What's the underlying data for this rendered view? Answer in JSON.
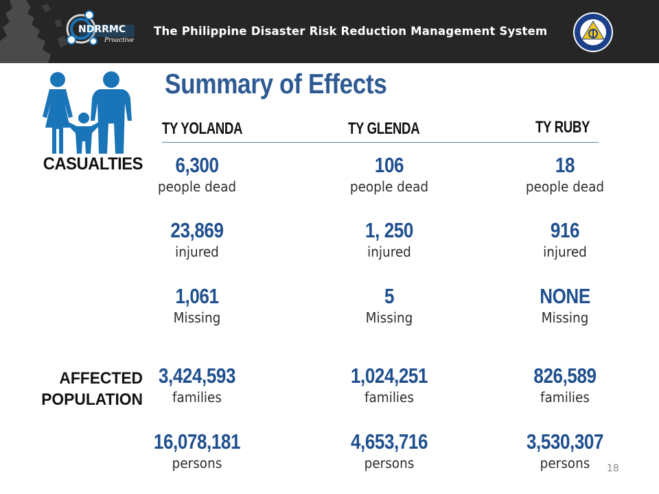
{
  "header": {
    "logo_acronym": "NDRRMC",
    "logo_tagline": "Proactive",
    "title": "The Philippine Disaster Risk Reduction Management System",
    "seal_icon": "civil-defense-seal-icon"
  },
  "slide": {
    "title": "Summary of Effects",
    "page_number": "18"
  },
  "icons": {
    "family": "family-icon"
  },
  "row_labels": {
    "casualties": "CASUALTIES",
    "affected_line1": "AFFECTED",
    "affected_line2": "POPULATION"
  },
  "typhoons": [
    {
      "name": "TY YOLANDA",
      "dead": "6,300",
      "dead_unit": "people dead",
      "injured": "23,869",
      "injured_unit": "injured",
      "missing": "1,061",
      "missing_unit": "Missing",
      "families": "3,424,593",
      "families_unit": "families",
      "persons": "16,078,181",
      "persons_unit": "persons"
    },
    {
      "name": "TY GLENDA",
      "dead": "106",
      "dead_unit": "people dead",
      "injured": "1, 250",
      "injured_unit": "injured",
      "missing": "5",
      "missing_unit": "Missing",
      "families": "1,024,251",
      "families_unit": "families",
      "persons": "4,653,716",
      "persons_unit": "persons"
    },
    {
      "name": "TY RUBY",
      "dead": "18",
      "dead_unit": "people dead",
      "injured": "916",
      "injured_unit": "injured",
      "missing": "NONE",
      "missing_unit": "Missing",
      "families": "826,589",
      "families_unit": "families",
      "persons": "3,530,307",
      "persons_unit": "persons"
    }
  ],
  "colors": {
    "banner": "#262626",
    "title_blue": "#2e5a93",
    "number_blue": "#1f4f8e",
    "icon_blue": "#1a74b8"
  }
}
